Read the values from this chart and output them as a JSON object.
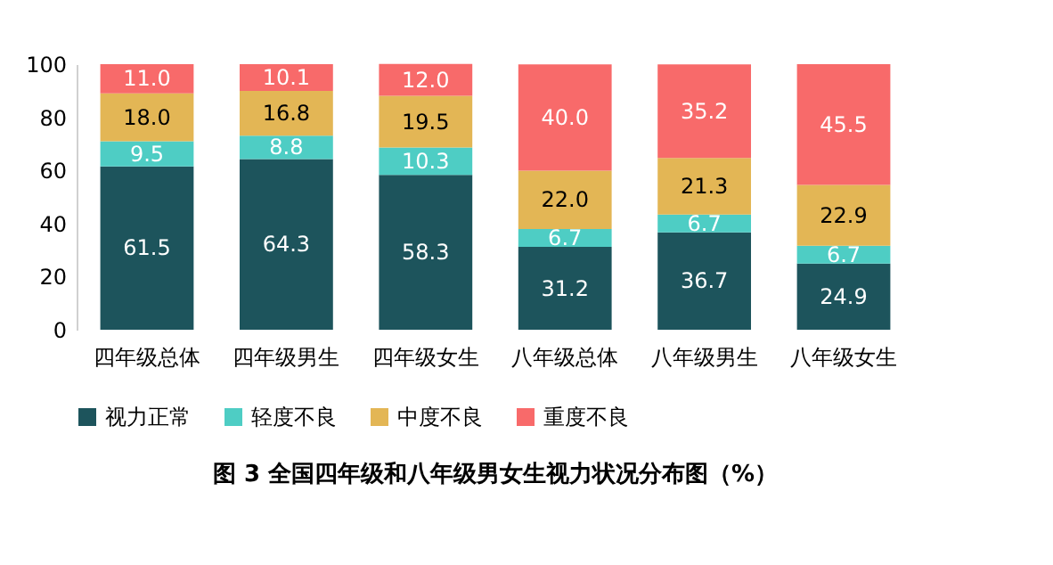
{
  "chart_data": {
    "type": "bar",
    "stacked": true,
    "title": "图 3   全国四年级和八年级男女生视力状况分布图（%）",
    "categories": [
      "四年级总体",
      "四年级男生",
      "四年级女生",
      "八年级总体",
      "八年级男生",
      "八年级女生"
    ],
    "series": [
      {
        "name": "视力正常",
        "color": "#1d545c",
        "values": [
          61.5,
          64.3,
          58.3,
          31.2,
          36.7,
          24.9
        ],
        "value_labels": [
          "61.5",
          "64.3",
          "58.3",
          "31.2",
          "36.7",
          "24.9"
        ]
      },
      {
        "name": "轻度不良",
        "color": "#4ecdc4",
        "values": [
          9.5,
          8.8,
          10.3,
          6.7,
          6.7,
          6.7
        ],
        "value_labels": [
          "9.5",
          "8.8",
          "10.3",
          "6.7",
          "6.7",
          "6.7"
        ]
      },
      {
        "name": "中度不良",
        "color": "#e3b655",
        "values": [
          18.0,
          16.8,
          19.5,
          22.0,
          21.3,
          22.9
        ],
        "value_labels": [
          "18.0",
          "16.8",
          "19.5",
          "22.0",
          "21.3",
          "22.9"
        ]
      },
      {
        "name": "重度不良",
        "color": "#f86a6a",
        "values": [
          11.0,
          10.1,
          12.0,
          40.0,
          35.2,
          45.5
        ],
        "value_labels": [
          "11.0",
          "10.1",
          "12.0",
          "40.0",
          "35.2",
          "45.5"
        ]
      }
    ],
    "ylim": [
      0,
      100
    ],
    "yticks": [
      0,
      20,
      40,
      60,
      80,
      100
    ],
    "grid": false,
    "legend": "bottom",
    "data_labels": true
  }
}
